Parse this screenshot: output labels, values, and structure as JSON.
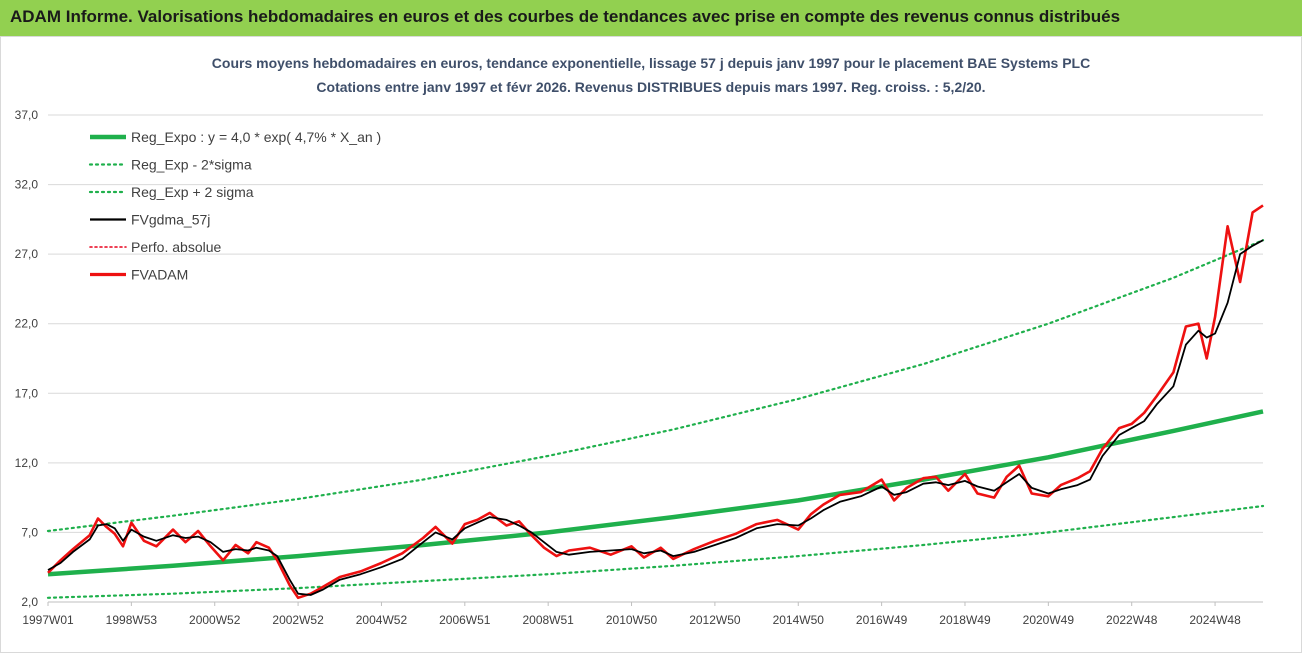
{
  "header": {
    "title": "ADAM Informe. Valorisations hebdomadaires en euros et des courbes de tendances avec prise en compte des revenus connus distribués"
  },
  "chart_data": {
    "type": "line",
    "title": "Cours moyens hebdomadaires en euros, tendance exponentielle, lissage 57 j depuis janv 1997 pour le placement BAE Systems PLC",
    "subtitle": "Cotations entre janv 1997 et févr 2026. Revenus DISTRIBUES depuis mars 1997. Reg. croiss. : 5,2/20.",
    "xlabel": "",
    "ylabel": "",
    "ylim": [
      2.0,
      37.0
    ],
    "yticks": [
      "37,0",
      "32,0",
      "27,0",
      "22,0",
      "17,0",
      "12,0",
      "7,0",
      "2,0"
    ],
    "xlim": [
      1997.0,
      2026.15
    ],
    "xtick_labels": [
      "1997W01",
      "1998W53",
      "2000W52",
      "2002W52",
      "2004W52",
      "2006W51",
      "2008W51",
      "2010W50",
      "2012W50",
      "2014W50",
      "2016W49",
      "2018W49",
      "2020W49",
      "2022W48",
      "2024W48"
    ],
    "xtick_positions": [
      1997.0,
      1999.0,
      2001.0,
      2003.0,
      2005.0,
      2007.0,
      2009.0,
      2011.0,
      2013.0,
      2015.0,
      2017.0,
      2019.0,
      2021.0,
      2023.0,
      2025.0
    ],
    "grid": true,
    "legend_position": "top-left",
    "colors": {
      "reg": "#1fb04c",
      "sigma": "#1fb04c",
      "fvgdma": "#000000",
      "perfo": "#e8001c",
      "fvadam": "#ee1111",
      "grid": "#d9d9d9"
    },
    "series": [
      {
        "name": "Reg_Expo : y = 4,0 * exp( 4,7% *  X_an )",
        "style": "solid-thick",
        "x": [
          1997.0,
          2000.0,
          2003.0,
          2006.0,
          2009.0,
          2012.0,
          2015.0,
          2018.0,
          2021.0,
          2024.0,
          2026.15
        ],
        "values": [
          4.0,
          4.6,
          5.3,
          6.1,
          7.0,
          8.1,
          9.3,
          10.8,
          12.4,
          14.3,
          15.7
        ]
      },
      {
        "name": "Reg_Exp - 2*sigma",
        "style": "dotted",
        "x": [
          1997.0,
          2000.0,
          2003.0,
          2006.0,
          2009.0,
          2012.0,
          2015.0,
          2018.0,
          2021.0,
          2024.0,
          2026.15
        ],
        "values": [
          2.3,
          2.6,
          3.0,
          3.5,
          4.0,
          4.6,
          5.3,
          6.1,
          7.0,
          8.1,
          8.9
        ]
      },
      {
        "name": "Reg_Exp + 2 sigma",
        "style": "dotted",
        "x": [
          1997.0,
          2000.0,
          2003.0,
          2006.0,
          2009.0,
          2012.0,
          2015.0,
          2018.0,
          2021.0,
          2024.0,
          2026.15
        ],
        "values": [
          7.1,
          8.2,
          9.4,
          10.8,
          12.5,
          14.4,
          16.6,
          19.1,
          22.0,
          25.3,
          28.0
        ]
      },
      {
        "name": "FVgdma_57j",
        "style": "solid",
        "x": [
          1997.0,
          1997.3,
          1997.6,
          1998.0,
          1998.2,
          1998.4,
          1998.6,
          1998.8,
          1999.0,
          1999.3,
          1999.6,
          2000.0,
          2000.3,
          2000.6,
          2000.9,
          2001.2,
          2001.5,
          2001.8,
          2002.0,
          2002.3,
          2002.5,
          2002.8,
          2003.0,
          2003.3,
          2003.6,
          2004.0,
          2004.5,
          2005.0,
          2005.5,
          2006.0,
          2006.3,
          2006.7,
          2007.0,
          2007.3,
          2007.6,
          2008.0,
          2008.3,
          2008.6,
          2008.9,
          2009.2,
          2009.5,
          2010.0,
          2010.5,
          2011.0,
          2011.3,
          2011.7,
          2012.0,
          2012.5,
          2013.0,
          2013.5,
          2014.0,
          2014.5,
          2015.0,
          2015.3,
          2015.6,
          2016.0,
          2016.5,
          2017.0,
          2017.3,
          2017.6,
          2018.0,
          2018.3,
          2018.6,
          2019.0,
          2019.3,
          2019.7,
          2020.0,
          2020.3,
          2020.6,
          2021.0,
          2021.3,
          2021.7,
          2022.0,
          2022.3,
          2022.7,
          2023.0,
          2023.3,
          2023.6,
          2024.0,
          2024.3,
          2024.6,
          2024.8,
          2025.0,
          2025.3,
          2025.6,
          2025.9,
          2026.15
        ],
        "values": [
          4.3,
          4.8,
          5.6,
          6.5,
          7.5,
          7.6,
          7.3,
          6.4,
          7.2,
          6.7,
          6.4,
          6.8,
          6.6,
          6.7,
          6.3,
          5.6,
          5.8,
          5.7,
          5.9,
          5.7,
          5.3,
          3.6,
          2.6,
          2.5,
          2.9,
          3.6,
          4.0,
          4.5,
          5.1,
          6.3,
          7.0,
          6.5,
          7.3,
          7.7,
          8.1,
          7.9,
          7.5,
          7.0,
          6.3,
          5.6,
          5.4,
          5.6,
          5.7,
          5.8,
          5.5,
          5.7,
          5.3,
          5.6,
          6.1,
          6.6,
          7.3,
          7.6,
          7.5,
          8.0,
          8.6,
          9.2,
          9.6,
          10.3,
          9.7,
          9.9,
          10.5,
          10.6,
          10.4,
          10.7,
          10.3,
          10.0,
          10.6,
          11.2,
          10.2,
          9.8,
          10.1,
          10.4,
          10.8,
          12.5,
          14.0,
          14.5,
          15.0,
          16.2,
          17.5,
          20.5,
          21.5,
          21.0,
          21.3,
          23.5,
          27.0,
          27.6,
          28.0
        ]
      },
      {
        "name": "Perfo. absolue",
        "style": "dotted",
        "x": [],
        "values": []
      },
      {
        "name": "FVADAM",
        "style": "solid-thick",
        "x": [
          1997.0,
          1997.3,
          1997.6,
          1998.0,
          1998.2,
          1998.4,
          1998.6,
          1998.8,
          1999.0,
          1999.3,
          1999.6,
          2000.0,
          2000.3,
          2000.6,
          2000.9,
          2001.2,
          2001.5,
          2001.8,
          2002.0,
          2002.3,
          2002.5,
          2002.8,
          2003.0,
          2003.3,
          2003.6,
          2004.0,
          2004.5,
          2005.0,
          2005.5,
          2006.0,
          2006.3,
          2006.7,
          2007.0,
          2007.3,
          2007.6,
          2008.0,
          2008.3,
          2008.6,
          2008.9,
          2009.2,
          2009.5,
          2010.0,
          2010.5,
          2011.0,
          2011.3,
          2011.7,
          2012.0,
          2012.5,
          2013.0,
          2013.5,
          2014.0,
          2014.5,
          2015.0,
          2015.3,
          2015.6,
          2016.0,
          2016.5,
          2017.0,
          2017.3,
          2017.6,
          2018.0,
          2018.3,
          2018.6,
          2019.0,
          2019.3,
          2019.7,
          2020.0,
          2020.3,
          2020.6,
          2021.0,
          2021.3,
          2021.7,
          2022.0,
          2022.3,
          2022.7,
          2023.0,
          2023.3,
          2023.6,
          2024.0,
          2024.3,
          2024.6,
          2024.8,
          2025.0,
          2025.3,
          2025.6,
          2025.9,
          2026.15
        ],
        "values": [
          4.1,
          5.0,
          5.8,
          6.8,
          8.0,
          7.4,
          6.9,
          6.0,
          7.7,
          6.4,
          6.0,
          7.2,
          6.3,
          7.1,
          6.0,
          5.0,
          6.1,
          5.5,
          6.3,
          5.9,
          5.0,
          3.2,
          2.3,
          2.6,
          3.1,
          3.8,
          4.2,
          4.8,
          5.5,
          6.6,
          7.4,
          6.2,
          7.6,
          7.9,
          8.4,
          7.5,
          7.8,
          6.8,
          5.9,
          5.3,
          5.7,
          5.9,
          5.4,
          6.0,
          5.2,
          5.9,
          5.1,
          5.8,
          6.4,
          6.9,
          7.6,
          7.9,
          7.2,
          8.3,
          9.0,
          9.7,
          9.9,
          10.8,
          9.3,
          10.2,
          10.9,
          11.0,
          10.0,
          11.2,
          9.8,
          9.5,
          11.0,
          11.8,
          9.8,
          9.6,
          10.4,
          10.9,
          11.4,
          13.0,
          14.5,
          14.8,
          15.6,
          16.8,
          18.5,
          21.8,
          22.0,
          19.5,
          22.5,
          29.0,
          25.0,
          30.0,
          30.5
        ]
      }
    ]
  }
}
